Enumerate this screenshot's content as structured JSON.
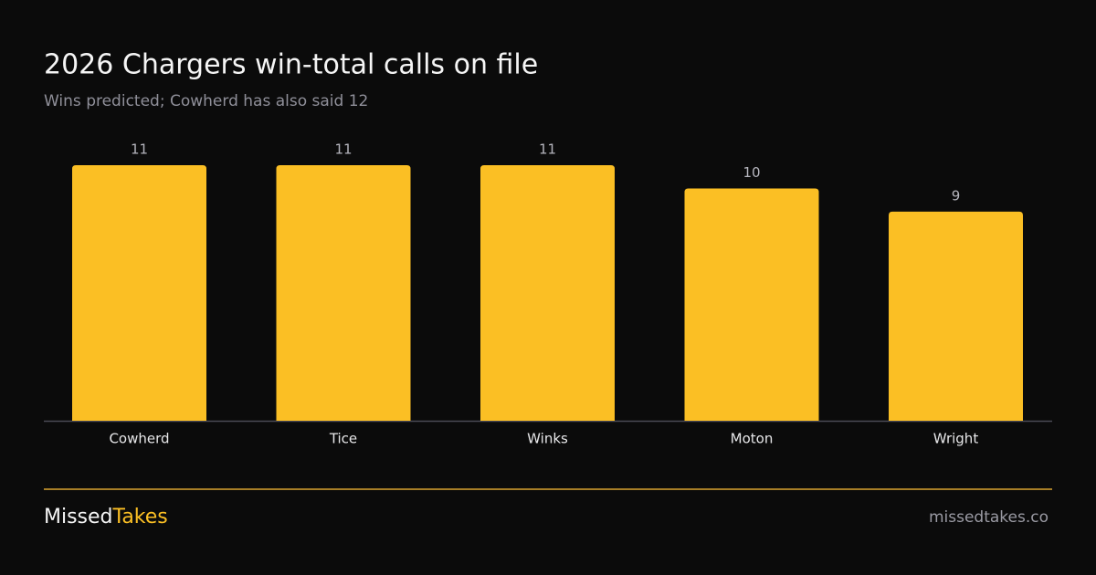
{
  "chart_data": {
    "type": "bar",
    "title": "2026 Chargers win-total calls on file",
    "subtitle": "Wins predicted; Cowherd has also said 12",
    "categories": [
      "Cowherd",
      "Tice",
      "Winks",
      "Moton",
      "Wright"
    ],
    "values": [
      11,
      11,
      11,
      10,
      9
    ],
    "color": "#fbbf24",
    "ylim": [
      0,
      11
    ]
  },
  "footer": {
    "brand_primary": "Missed",
    "brand_accent": "Takes",
    "url": "missedtakes.co"
  }
}
